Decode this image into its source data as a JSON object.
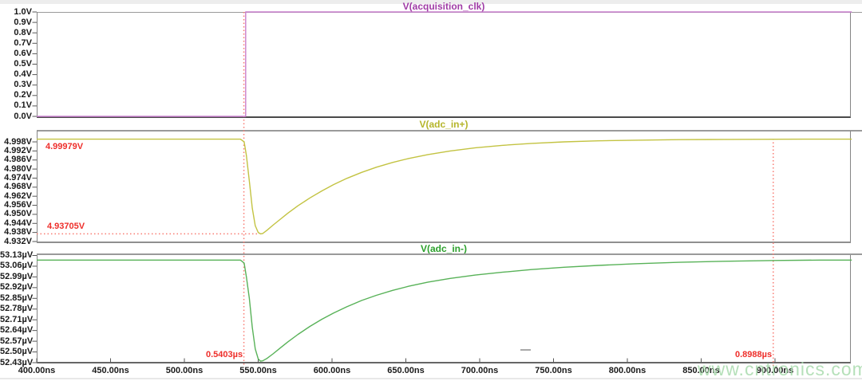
{
  "watermark": {
    "text": "www.cntronics.com",
    "color": "#a3d9a8"
  },
  "colors": {
    "cursor_text_red": "#ee2e2a",
    "cursor_line_red": "#f87b72",
    "tick_text": "#1a1a1a",
    "panel_border_gray": "#8f8f8f"
  },
  "chart_data": {
    "type": "line",
    "x_axis": {
      "unit": "ns",
      "tick_labels": [
        "400.00ns",
        "450.00ns",
        "500.00ns",
        "550.00ns",
        "600.00ns",
        "650.00ns",
        "700.00ns",
        "750.00ns",
        "800.00ns",
        "850.00ns",
        "900.00ns"
      ],
      "range_ns": [
        400,
        952
      ],
      "grid": false
    },
    "panels": [
      {
        "id": "acquisition_clk",
        "title": "V(acquisition_clk)",
        "title_color": "#a03ca6",
        "trace_color": "#c97fce",
        "y_unit": "V",
        "y_tick_labels": [
          "1.0V",
          "0.9V",
          "0.8V",
          "0.7V",
          "0.6V",
          "0.5V",
          "0.4V",
          "0.3V",
          "0.2V",
          "0.1V",
          "0.0V"
        ],
        "y_range": [
          0.0,
          1.0
        ],
        "points": [
          [
            400,
            0
          ],
          [
            541.5,
            0
          ],
          [
            541.5,
            1
          ],
          [
            952,
            1
          ]
        ]
      },
      {
        "id": "adc_in_plus",
        "title": "V(adc_in+)",
        "title_color": "#b5b52a",
        "trace_color": "#c3c342",
        "y_unit": "V",
        "y_tick_labels": [
          "4.998V",
          "4.992V",
          "4.986V",
          "4.980V",
          "4.974V",
          "4.968V",
          "4.962V",
          "4.956V",
          "4.950V",
          "4.944V",
          "4.938V",
          "4.932V"
        ],
        "y_range": [
          4.932,
          4.998
        ],
        "points": [
          [
            400,
            4.99979
          ],
          [
            538,
            4.99979
          ],
          [
            540.5,
            4.998
          ],
          [
            542,
            4.989
          ],
          [
            544,
            4.972
          ],
          [
            546,
            4.954
          ],
          [
            548,
            4.9425
          ],
          [
            550,
            4.938
          ],
          [
            551.5,
            4.93705
          ],
          [
            553,
            4.9373
          ],
          [
            556,
            4.9395
          ],
          [
            560,
            4.9428
          ],
          [
            565,
            4.9468
          ],
          [
            570,
            4.9507
          ],
          [
            577,
            4.9557
          ],
          [
            585,
            4.9609
          ],
          [
            593,
            4.9655
          ],
          [
            601,
            4.9697
          ],
          [
            610,
            4.9738
          ],
          [
            620,
            4.9778
          ],
          [
            630,
            4.9812
          ],
          [
            641,
            4.9844
          ],
          [
            652,
            4.987
          ],
          [
            665,
            4.9896
          ],
          [
            680,
            4.992
          ],
          [
            697,
            4.9941
          ],
          [
            715,
            4.9957
          ],
          [
            735,
            4.997
          ],
          [
            757,
            4.998
          ],
          [
            780,
            4.9987
          ],
          [
            805,
            4.9991
          ],
          [
            835,
            4.9995
          ],
          [
            865,
            4.99965
          ],
          [
            898.8,
            4.99975
          ],
          [
            920,
            4.99979
          ],
          [
            952,
            4.99979
          ]
        ]
      },
      {
        "id": "adc_in_minus",
        "title": "V(adc_in-)",
        "title_color": "#2ca02c",
        "trace_color": "#58b258",
        "y_unit": "µV",
        "y_tick_labels": [
          "53.13µV",
          "53.06µV",
          "52.99µV",
          "52.92µV",
          "52.85µV",
          "52.78µV",
          "52.71µV",
          "52.64µV",
          "52.57µV",
          "52.50µV",
          "52.43µV"
        ],
        "y_range": [
          52.43,
          53.13
        ],
        "points": [
          [
            400,
            53.1
          ],
          [
            538,
            53.1
          ],
          [
            540.5,
            53.08
          ],
          [
            542,
            52.99
          ],
          [
            544,
            52.85
          ],
          [
            546,
            52.66
          ],
          [
            548,
            52.52
          ],
          [
            550,
            52.455
          ],
          [
            551.5,
            52.44
          ],
          [
            553,
            52.442
          ],
          [
            556,
            52.458
          ],
          [
            560,
            52.487
          ],
          [
            565,
            52.527
          ],
          [
            570,
            52.565
          ],
          [
            577,
            52.615
          ],
          [
            585,
            52.667
          ],
          [
            593,
            52.713
          ],
          [
            601,
            52.754
          ],
          [
            610,
            52.795
          ],
          [
            620,
            52.836
          ],
          [
            630,
            52.87
          ],
          [
            641,
            52.902
          ],
          [
            652,
            52.929
          ],
          [
            665,
            52.956
          ],
          [
            680,
            52.98
          ],
          [
            697,
            53.002
          ],
          [
            715,
            53.02
          ],
          [
            735,
            53.038
          ],
          [
            757,
            53.053
          ],
          [
            780,
            53.065
          ],
          [
            805,
            53.076
          ],
          [
            835,
            53.085
          ],
          [
            865,
            53.092
          ],
          [
            900,
            53.097
          ],
          [
            930,
            53.1
          ],
          [
            952,
            53.1
          ]
        ]
      }
    ],
    "cursors": {
      "cursor1": {
        "time_label": "0.5403µs",
        "time_ns": 540.3
      },
      "cursor2": {
        "time_label": "0.8988µs",
        "time_ns": 898.8
      },
      "level_high": {
        "label": "4.99979V",
        "volts": 4.99979
      },
      "level_low": {
        "label": "4.93705V",
        "volts": 4.93705
      }
    },
    "legend_position": "title-above-each-pane"
  }
}
